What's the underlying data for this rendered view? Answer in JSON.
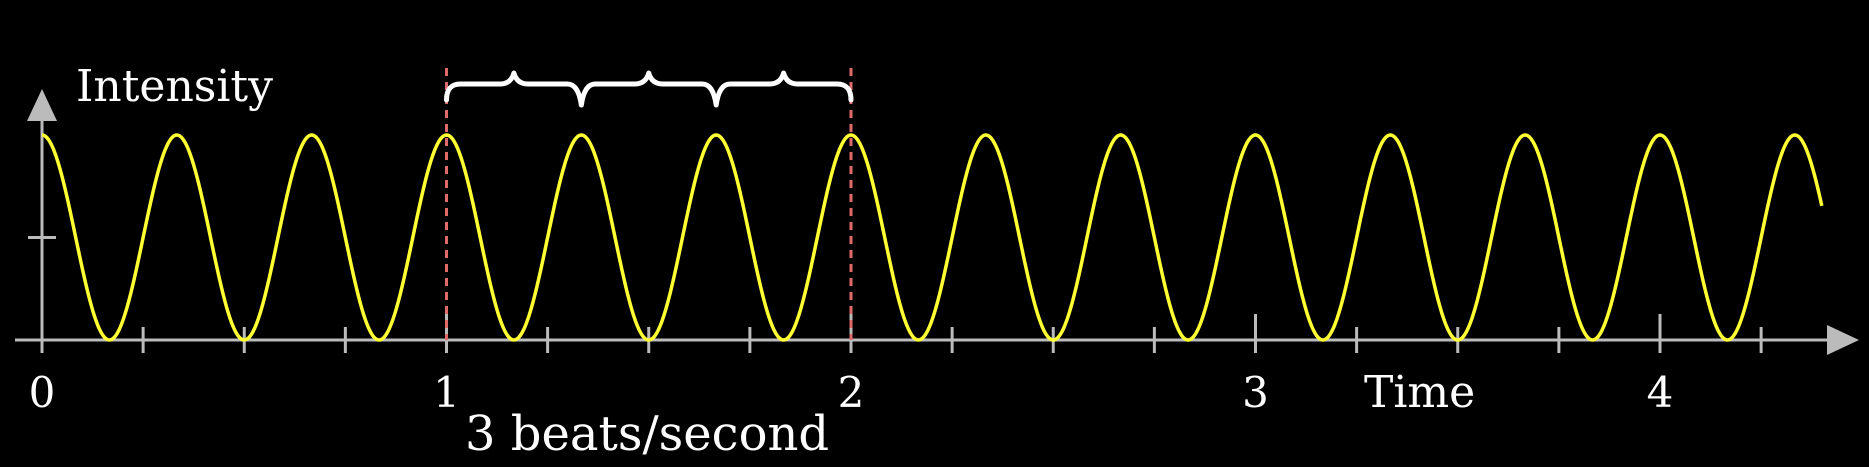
{
  "chart_data": {
    "type": "line",
    "ylabel": "Intensity",
    "xlabel": "Time",
    "annotation": "3 beats/second",
    "x_tick_labels": [
      "0",
      "1",
      "2",
      "3",
      "4"
    ],
    "xlim": [
      0,
      4.4
    ],
    "ylim": [
      0,
      1
    ],
    "x_minor_step": 0.25,
    "y_ticks": [
      0.5
    ],
    "series": [
      {
        "frequency": 3,
        "amplitude": 0.5,
        "offset": 0.5,
        "phase": "cosine"
      }
    ],
    "highlight_interval": [
      1,
      2
    ],
    "brace_peaks": 3,
    "colors": {
      "wave": "#ffff33",
      "axis": "#bbbbbb",
      "marker": "#e06a6a",
      "text": "#ffffff"
    }
  }
}
